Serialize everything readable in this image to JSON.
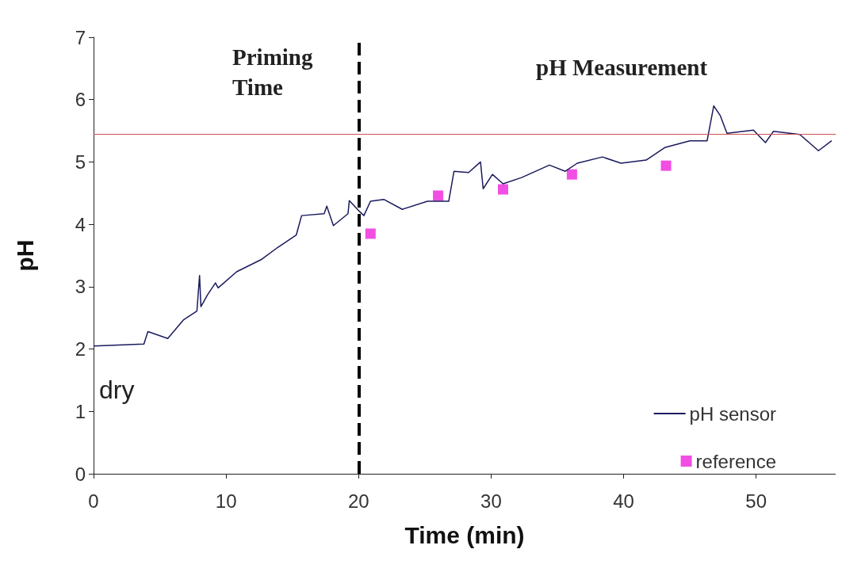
{
  "chart_data": {
    "type": "line",
    "xlabel": "Time (min)",
    "ylabel": "pH",
    "xlim": [
      0,
      56
    ],
    "xticks": [
      0,
      10,
      20,
      30,
      40,
      50
    ],
    "ylim": [
      0,
      7
    ],
    "yticks": [
      0,
      1,
      2,
      3,
      4,
      5,
      6,
      7
    ],
    "grid": false,
    "legend": "bottom right",
    "marker": "none",
    "line_style": "solid",
    "annotations": [
      "Priming Time",
      "pH Measurement",
      "dry"
    ],
    "ref_lines": [
      {
        "axis": "x",
        "value": 20,
        "color": "#000000",
        "line_style": "dashed"
      },
      {
        "axis": "y",
        "value": 5.45,
        "color": "#d05050",
        "line_style": "solid"
      }
    ],
    "series": [
      {
        "name": "pH sensor",
        "color": "#1a1a5e",
        "x": [
          0,
          3.8,
          4.1,
          5.6,
          6.8,
          7.8,
          8.0,
          8.1,
          8.6,
          9.2,
          9.4,
          10.8,
          12.7,
          13.9,
          15.3,
          15.7,
          17.4,
          17.6,
          18.1,
          19.2,
          19.3,
          20.1,
          20.4,
          20.9,
          21.9,
          23.3,
          25.2,
          26.8,
          27.2,
          28.3,
          29.2,
          29.4,
          30.1,
          30.9,
          32.3,
          34.4,
          35.6,
          36.5,
          38.4,
          39.8,
          41.7,
          43.1,
          45.0,
          46.3,
          46.8,
          47.3,
          47.8,
          49.8,
          50.7,
          51.3,
          53.3,
          54.0,
          54.7,
          55.7
        ],
        "values": [
          2.05,
          2.08,
          2.28,
          2.17,
          2.47,
          2.61,
          3.18,
          2.68,
          2.87,
          3.06,
          2.98,
          3.24,
          3.44,
          3.63,
          3.83,
          4.14,
          4.17,
          4.29,
          3.98,
          4.17,
          4.38,
          4.2,
          4.14,
          4.37,
          4.4,
          4.24,
          4.37,
          4.37,
          4.85,
          4.83,
          5.0,
          4.57,
          4.8,
          4.65,
          4.75,
          4.95,
          4.85,
          4.98,
          5.08,
          4.98,
          5.03,
          5.23,
          5.34,
          5.34,
          5.9,
          5.74,
          5.46,
          5.51,
          5.31,
          5.49,
          5.44,
          5.31,
          5.18,
          5.34
        ]
      },
      {
        "name": "reference",
        "type": "scatter",
        "marker": "square",
        "color": "#ee22dd",
        "x": [
          20.9,
          26.0,
          30.9,
          36.1,
          43.2
        ],
        "values": [
          3.85,
          4.46,
          4.56,
          4.8,
          4.94
        ]
      }
    ]
  }
}
